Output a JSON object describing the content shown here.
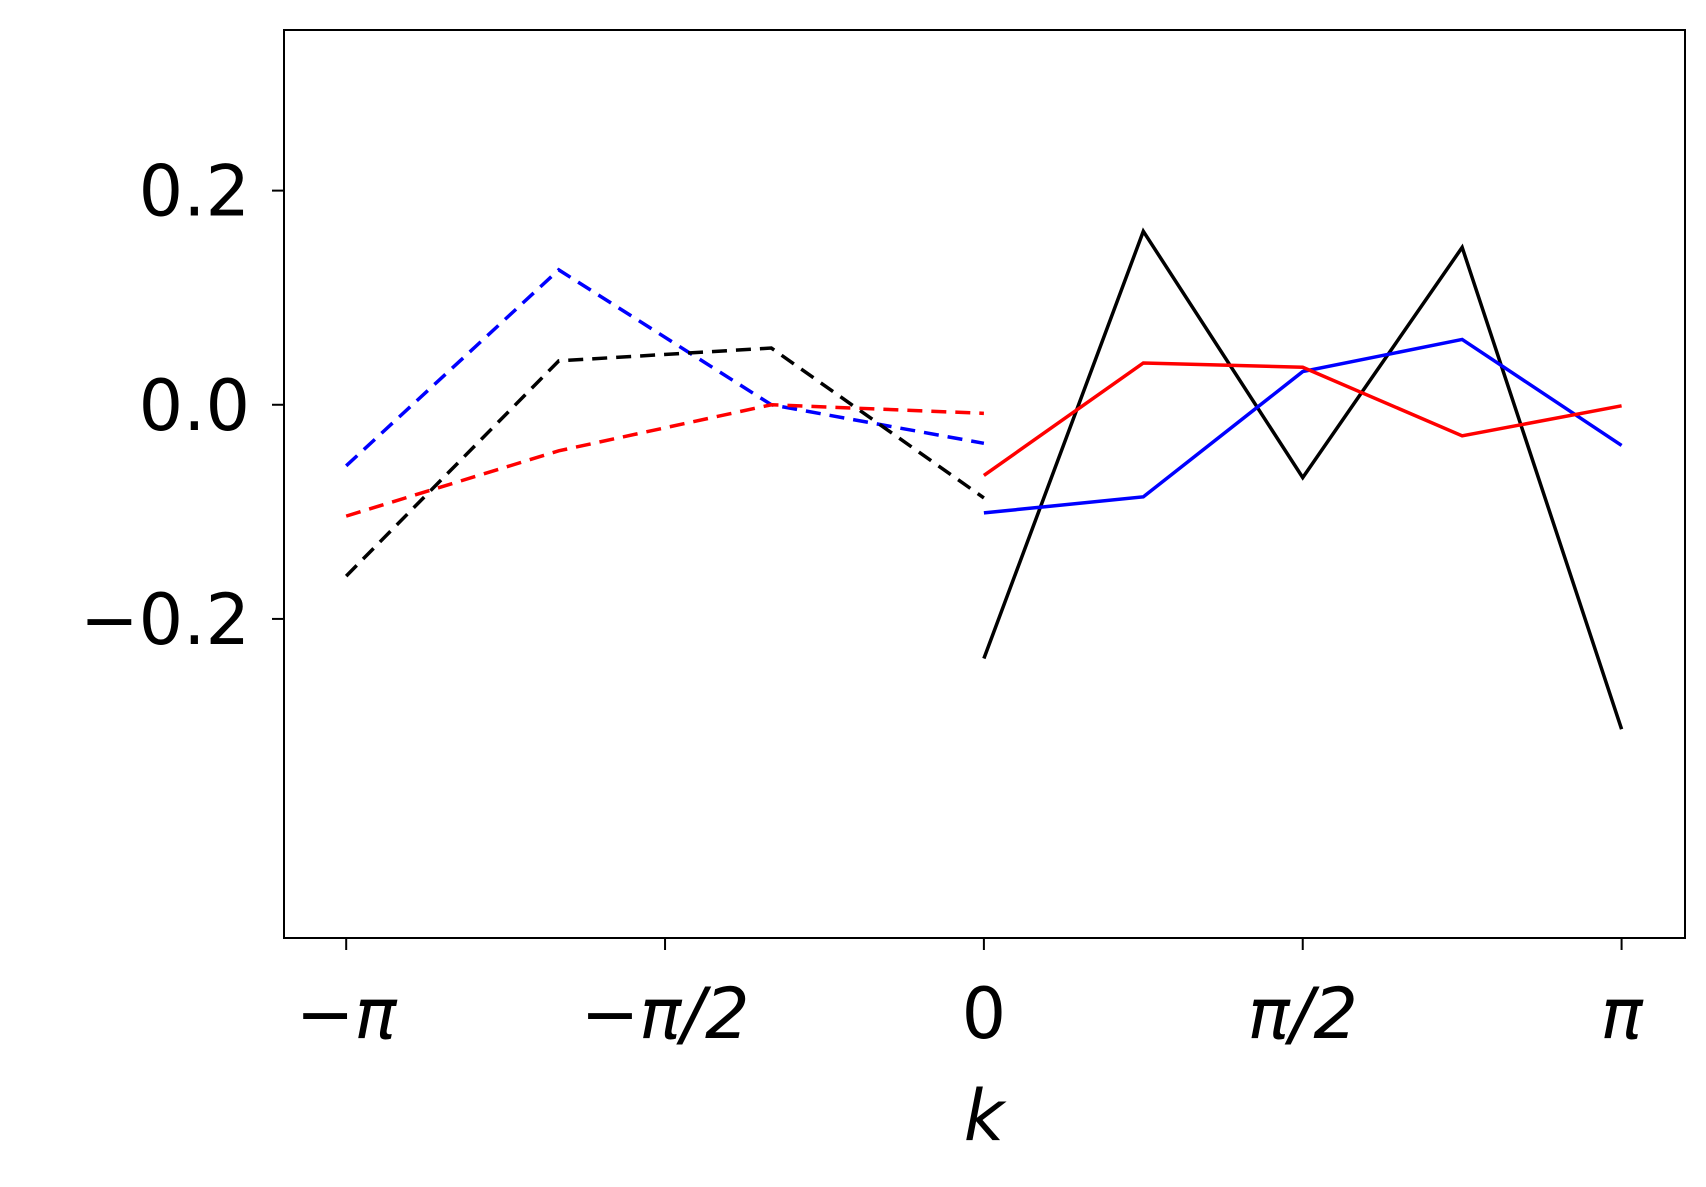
{
  "chart_data": {
    "type": "line",
    "xlabel": "k",
    "xlim": [
      -3.448,
      3.454
    ],
    "ylim": [
      -0.498,
      0.35
    ],
    "xticks": [
      {
        "value": -3.1416,
        "label": "−π"
      },
      {
        "value": -1.5708,
        "label": "−π/2"
      },
      0,
      {
        "value": 1.5708,
        "label": "π/2"
      },
      {
        "value": 3.1416,
        "label": "π"
      }
    ],
    "yticks": [
      {
        "value": -0.2,
        "label": "−0.2"
      },
      {
        "value": 0.0,
        "label": "0.0"
      },
      {
        "value": 0.2,
        "label": "0.2"
      }
    ],
    "series": [
      {
        "color": "#0000ff",
        "dashed": true,
        "x": [
          -3.1416,
          -2.0944,
          -1.0472,
          0
        ],
        "values": [
          -0.057,
          0.126,
          0.0,
          -0.036
        ]
      },
      {
        "color": "#000000",
        "dashed": true,
        "x": [
          -3.1416,
          -2.0944,
          -1.0472,
          0
        ],
        "values": [
          -0.16,
          0.041,
          0.053,
          -0.087
        ]
      },
      {
        "color": "#ff0000",
        "dashed": true,
        "x": [
          -3.1416,
          -2.0944,
          -1.0472,
          0
        ],
        "values": [
          -0.104,
          -0.043,
          0.0,
          -0.008
        ]
      },
      {
        "color": "#000000",
        "dashed": false,
        "x": [
          0,
          0.7854,
          1.5708,
          2.3562,
          3.1416
        ],
        "values": [
          -0.237,
          0.162,
          -0.068,
          0.147,
          -0.303
        ]
      },
      {
        "color": "#0000ff",
        "dashed": false,
        "x": [
          0,
          0.7854,
          1.5708,
          2.3562,
          3.1416
        ],
        "values": [
          -0.101,
          -0.086,
          0.031,
          0.061,
          -0.038
        ]
      },
      {
        "color": "#ff0000",
        "dashed": false,
        "x": [
          0,
          0.7854,
          1.5708,
          2.3562,
          3.1416
        ],
        "values": [
          -0.066,
          0.039,
          0.035,
          -0.029,
          -0.001
        ]
      }
    ]
  }
}
